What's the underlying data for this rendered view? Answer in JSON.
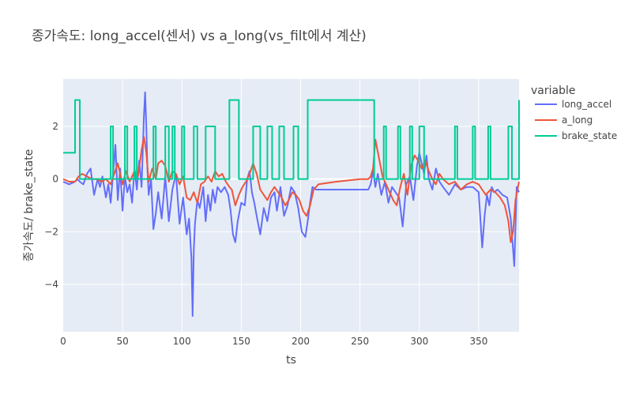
{
  "chart_data": {
    "type": "line",
    "title": "종가속도: long_accel(센서) vs a_long(vs_filt에서 계산)",
    "xlabel": "ts",
    "ylabel": "종가속도/ brake_state",
    "xlim": [
      0,
      384
    ],
    "ylim": [
      -5.8,
      3.8
    ],
    "x_ticks": [
      0,
      50,
      100,
      150,
      200,
      250,
      300,
      350
    ],
    "y_ticks": [
      -4,
      -2,
      0,
      2
    ],
    "y_tick_labels": [
      "−4",
      "−2",
      "0",
      "2"
    ],
    "grid": true,
    "legend": {
      "title": "variable",
      "placement": "top-right, outside plot"
    },
    "series": [
      {
        "name": "long_accel",
        "color": "#636efa",
        "x": [
          0,
          5,
          10,
          12,
          14,
          17,
          20,
          23,
          26,
          29,
          31,
          33,
          36,
          38,
          40,
          42,
          44,
          46,
          48,
          50,
          52,
          54,
          56,
          58,
          60,
          62,
          64,
          66,
          68,
          69,
          70,
          71,
          72,
          74,
          76,
          78,
          80,
          83,
          86,
          89,
          92,
          95,
          98,
          101,
          104,
          106,
          108,
          109,
          110,
          111,
          113,
          115,
          118,
          120,
          122,
          124,
          126,
          128,
          130,
          133,
          136,
          139,
          141,
          143,
          145,
          147,
          150,
          153,
          155,
          157,
          159,
          161,
          163,
          166,
          169,
          172,
          175,
          178,
          180,
          183,
          186,
          189,
          192,
          195,
          198,
          201,
          204,
          206,
          208,
          210,
          213,
          220,
          230,
          240,
          250,
          257,
          259,
          261,
          263,
          265,
          268,
          271,
          274,
          277,
          280,
          283,
          286,
          289,
          292,
          295,
          298,
          300,
          302,
          304,
          306,
          308,
          311,
          314,
          317,
          320,
          325,
          330,
          335,
          340,
          345,
          350,
          353,
          355,
          357,
          359,
          361,
          363,
          366,
          370,
          374,
          377,
          380,
          382,
          384
        ],
        "values": [
          -0.1,
          -0.2,
          -0.1,
          0.0,
          -0.1,
          -0.2,
          0.2,
          0.4,
          -0.6,
          0.0,
          -0.3,
          0.1,
          -0.7,
          -0.2,
          -0.9,
          0.2,
          1.3,
          -0.8,
          0.4,
          -1.2,
          0.1,
          -0.5,
          -0.2,
          -0.9,
          0.4,
          -0.4,
          0.7,
          -0.3,
          2.4,
          3.3,
          2.0,
          0.3,
          -0.6,
          0.0,
          -1.9,
          -1.3,
          -0.5,
          -1.5,
          0.1,
          -1.6,
          -0.4,
          0.2,
          -1.7,
          -0.7,
          -2.1,
          -1.5,
          -3.0,
          -5.2,
          -2.7,
          -1.7,
          -0.8,
          -1.1,
          -0.3,
          -1.6,
          -0.6,
          -1.2,
          -0.4,
          -0.9,
          -0.3,
          -0.5,
          -0.3,
          -0.6,
          -1.2,
          -2.1,
          -2.4,
          -1.6,
          -0.9,
          -1.0,
          0.0,
          0.3,
          -0.5,
          -0.9,
          -1.4,
          -2.1,
          -1.1,
          -1.6,
          -0.7,
          -0.5,
          -1.2,
          -0.3,
          -1.4,
          -1.0,
          -0.3,
          -0.5,
          -1.1,
          -2.0,
          -2.2,
          -1.6,
          -0.9,
          -0.3,
          -0.4,
          -0.4,
          -0.4,
          -0.4,
          -0.4,
          -0.4,
          -0.2,
          0.3,
          -0.3,
          0.2,
          -0.6,
          -0.1,
          -0.9,
          -0.3,
          -0.5,
          -0.7,
          -1.8,
          -0.2,
          0.1,
          -0.8,
          0.5,
          1.0,
          0.6,
          0.2,
          0.9,
          0.0,
          -0.4,
          0.4,
          -0.1,
          -0.3,
          -0.6,
          -0.2,
          -0.4,
          -0.3,
          -0.3,
          -0.5,
          -2.6,
          -1.4,
          -0.6,
          -1.0,
          -0.3,
          -0.5,
          -0.4,
          -0.6,
          -0.7,
          -1.5,
          -3.3,
          -0.3,
          -0.5
        ]
      },
      {
        "name": "a_long",
        "color": "#ef553b",
        "x": [
          0,
          5,
          10,
          13,
          16,
          20,
          24,
          28,
          32,
          36,
          40,
          43,
          46,
          50,
          53,
          56,
          60,
          63,
          66,
          68,
          70,
          72,
          75,
          78,
          80,
          83,
          86,
          89,
          92,
          95,
          98,
          101,
          104,
          107,
          110,
          113,
          116,
          119,
          122,
          125,
          128,
          131,
          134,
          137,
          140,
          142,
          145,
          148,
          151,
          154,
          157,
          160,
          163,
          166,
          169,
          172,
          175,
          178,
          181,
          184,
          187,
          190,
          193,
          196,
          199,
          202,
          205,
          208,
          211,
          215,
          230,
          250,
          257,
          259,
          261,
          263,
          266,
          269,
          272,
          275,
          278,
          281,
          284,
          287,
          290,
          293,
          296,
          299,
          302,
          305,
          308,
          311,
          314,
          317,
          320,
          325,
          330,
          335,
          340,
          345,
          350,
          353,
          356,
          360,
          364,
          368,
          372,
          375,
          377,
          379,
          381,
          384
        ],
        "values": [
          0.0,
          -0.1,
          -0.1,
          0.1,
          0.2,
          0.1,
          0.0,
          0.0,
          -0.1,
          0.0,
          -0.2,
          0.2,
          0.6,
          -0.2,
          0.3,
          -0.1,
          0.3,
          0.1,
          1.1,
          1.6,
          1.0,
          -0.1,
          0.4,
          0.0,
          0.6,
          0.7,
          0.5,
          -0.1,
          0.3,
          0.2,
          -0.2,
          0.1,
          -0.7,
          -0.8,
          -0.5,
          -0.9,
          -0.2,
          -0.1,
          0.1,
          -0.1,
          0.3,
          0.1,
          0.2,
          -0.1,
          -0.3,
          -0.4,
          -1.0,
          -0.6,
          -0.3,
          -0.1,
          0.2,
          0.6,
          0.2,
          -0.4,
          -0.6,
          -0.8,
          -0.5,
          -0.3,
          -0.5,
          -0.7,
          -1.0,
          -0.8,
          -0.5,
          -0.6,
          -0.8,
          -1.2,
          -1.4,
          -1.0,
          -0.4,
          -0.2,
          -0.1,
          0.0,
          0.0,
          0.1,
          0.4,
          1.5,
          0.8,
          0.1,
          -0.2,
          -0.5,
          -0.8,
          -1.0,
          -0.3,
          0.2,
          -0.6,
          0.5,
          0.9,
          0.7,
          0.4,
          0.7,
          0.3,
          0.0,
          -0.2,
          0.2,
          0.0,
          -0.2,
          -0.1,
          -0.4,
          -0.2,
          -0.1,
          -0.2,
          -0.4,
          -0.6,
          -0.4,
          -0.5,
          -0.7,
          -1.0,
          -1.6,
          -2.4,
          -2.0,
          -0.8,
          -0.1
        ]
      },
      {
        "name": "brake_state",
        "color": "#00cc96",
        "steps": [
          [
            0,
            1
          ],
          [
            10,
            3
          ],
          [
            14,
            0
          ],
          [
            40,
            2
          ],
          [
            42,
            0
          ],
          [
            52,
            2
          ],
          [
            54,
            0
          ],
          [
            60,
            2
          ],
          [
            62,
            0
          ],
          [
            76,
            2
          ],
          [
            78,
            0
          ],
          [
            86,
            2
          ],
          [
            89,
            0
          ],
          [
            92,
            2
          ],
          [
            94,
            0
          ],
          [
            100,
            2
          ],
          [
            102,
            0
          ],
          [
            110,
            2
          ],
          [
            113,
            0
          ],
          [
            120,
            2
          ],
          [
            128,
            0
          ],
          [
            140,
            3
          ],
          [
            148,
            0
          ],
          [
            160,
            2
          ],
          [
            166,
            0
          ],
          [
            172,
            2
          ],
          [
            176,
            0
          ],
          [
            182,
            2
          ],
          [
            186,
            0
          ],
          [
            194,
            2
          ],
          [
            198,
            0
          ],
          [
            206,
            3
          ],
          [
            262,
            0
          ],
          [
            270,
            2
          ],
          [
            272,
            0
          ],
          [
            282,
            2
          ],
          [
            284,
            0
          ],
          [
            292,
            2
          ],
          [
            294,
            0
          ],
          [
            300,
            2
          ],
          [
            304,
            0
          ],
          [
            330,
            2
          ],
          [
            332,
            0
          ],
          [
            345,
            2
          ],
          [
            347,
            0
          ],
          [
            358,
            2
          ],
          [
            360,
            0
          ],
          [
            375,
            2
          ],
          [
            378,
            0
          ],
          [
            384,
            3
          ]
        ]
      }
    ]
  }
}
